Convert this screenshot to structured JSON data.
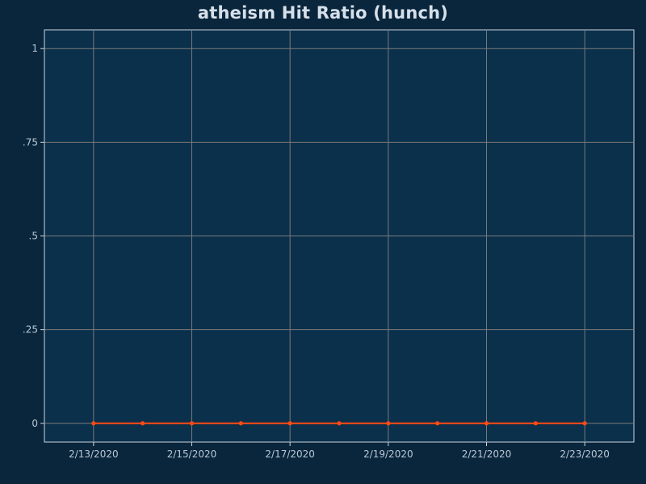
{
  "chart_data": {
    "type": "line",
    "title": "atheism Hit Ratio (hunch)",
    "xlabel": "",
    "ylabel": "",
    "x_tick_labels": [
      "2/13/2020",
      "2/15/2020",
      "2/17/2020",
      "2/19/2020",
      "2/21/2020",
      "2/23/2020"
    ],
    "y_tick_labels": [
      "0",
      ".25",
      ".5",
      ".75",
      "1"
    ],
    "y_ticks": [
      0,
      0.25,
      0.5,
      0.75,
      1
    ],
    "ylim": [
      -0.05,
      1.05
    ],
    "xlim": [
      "2020-02-12",
      "2020-02-24"
    ],
    "grid": true,
    "series": [
      {
        "x": [
          "2020-02-13",
          "2020-02-14",
          "2020-02-15",
          "2020-02-16",
          "2020-02-17",
          "2020-02-18",
          "2020-02-19",
          "2020-02-20",
          "2020-02-21",
          "2020-02-22",
          "2020-02-23"
        ],
        "values": [
          0,
          0,
          0,
          0,
          0,
          0,
          0,
          0,
          0,
          0,
          0
        ],
        "color": "#ff4a14"
      }
    ],
    "colors": {
      "background": "#0a263c",
      "plot_background": "#0b304b",
      "grid": "#7a7a7a",
      "axis": "#c9d6e2",
      "line": "#ff4a14",
      "title": "#d6e0ea",
      "tick_text": "#b9c8d6"
    }
  }
}
